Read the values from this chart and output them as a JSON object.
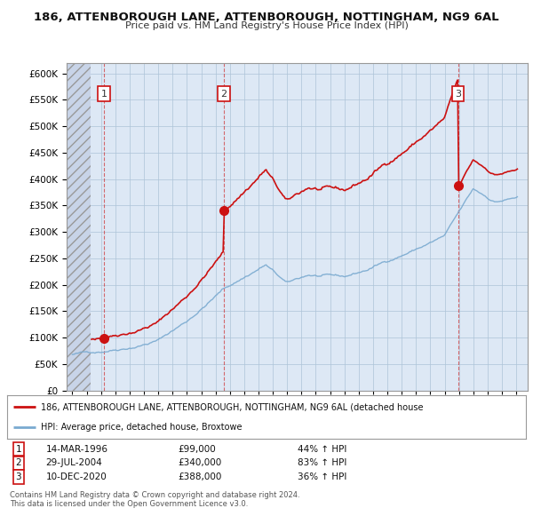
{
  "title1": "186, ATTENBOROUGH LANE, ATTENBOROUGH, NOTTINGHAM, NG9 6AL",
  "title2": "Price paid vs. HM Land Registry's House Price Index (HPI)",
  "bg_color": "#dde8f5",
  "sale_color": "#cc1111",
  "hpi_color": "#7aaad0",
  "ylim": [
    0,
    620000
  ],
  "ytick_vals": [
    0,
    50000,
    100000,
    150000,
    200000,
    250000,
    300000,
    350000,
    400000,
    450000,
    500000,
    550000,
    600000
  ],
  "xlim_start": 1993.6,
  "xlim_end": 2025.8,
  "sale_dates": [
    1996.21,
    2004.575,
    2020.94
  ],
  "sale_prices": [
    99000,
    340000,
    388000
  ],
  "sale_labels": [
    "1",
    "2",
    "3"
  ],
  "legend_line1": "186, ATTENBOROUGH LANE, ATTENBOROUGH, NOTTINGHAM, NG9 6AL (detached house",
  "legend_line2": "HPI: Average price, detached house, Broxtowe",
  "table_rows": [
    {
      "num": "1",
      "date": "14-MAR-1996",
      "price": "£99,000",
      "change": "44% ↑ HPI"
    },
    {
      "num": "2",
      "date": "29-JUL-2004",
      "price": "£340,000",
      "change": "83% ↑ HPI"
    },
    {
      "num": "3",
      "date": "10-DEC-2020",
      "price": "£388,000",
      "change": "36% ↑ HPI"
    }
  ],
  "footnote1": "Contains HM Land Registry data © Crown copyright and database right 2024.",
  "footnote2": "This data is licensed under the Open Government Licence v3.0."
}
